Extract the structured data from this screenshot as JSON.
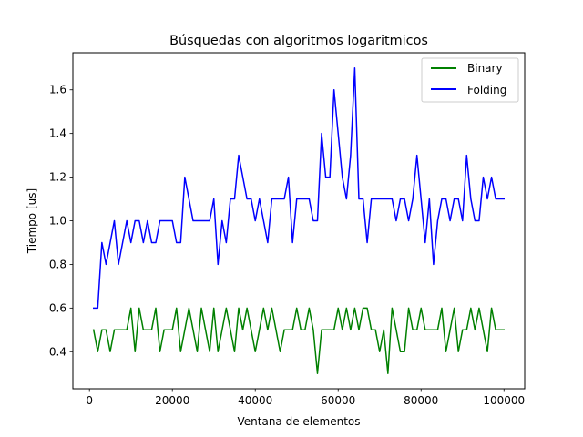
{
  "chart_data": {
    "type": "line",
    "title": "Búsquedas con algoritmos logaritmicos",
    "xlabel": "Ventana de elementos",
    "ylabel": "Tiempo [us]",
    "xlim": [
      -4000,
      105000
    ],
    "ylim": [
      0.23,
      1.77
    ],
    "xticks": [
      0,
      20000,
      40000,
      60000,
      80000,
      100000
    ],
    "yticks": [
      0.4,
      0.6,
      0.8,
      1.0,
      1.2,
      1.4,
      1.6
    ],
    "ytick_labels": [
      "0.4",
      "0.6",
      "0.8",
      "1.0",
      "1.2",
      "1.4",
      "1.6"
    ],
    "grid": false,
    "legend_position": "upper right",
    "x": [
      1000,
      2000,
      3000,
      4000,
      5000,
      6000,
      7000,
      8000,
      9000,
      10000,
      11000,
      12000,
      13000,
      14000,
      15000,
      16000,
      17000,
      18000,
      19000,
      20000,
      21000,
      22000,
      23000,
      24000,
      25000,
      26000,
      27000,
      28000,
      29000,
      30000,
      31000,
      32000,
      33000,
      34000,
      35000,
      36000,
      37000,
      38000,
      39000,
      40000,
      41000,
      42000,
      43000,
      44000,
      45000,
      46000,
      47000,
      48000,
      49000,
      50000,
      51000,
      52000,
      53000,
      54000,
      55000,
      56000,
      57000,
      58000,
      59000,
      60000,
      61000,
      62000,
      63000,
      64000,
      65000,
      66000,
      67000,
      68000,
      69000,
      70000,
      71000,
      72000,
      73000,
      74000,
      75000,
      76000,
      77000,
      78000,
      79000,
      80000,
      81000,
      82000,
      83000,
      84000,
      85000,
      86000,
      87000,
      88000,
      89000,
      90000,
      91000,
      92000,
      93000,
      94000,
      95000,
      96000,
      97000,
      98000,
      99000,
      100000
    ],
    "series": [
      {
        "name": "Binary",
        "color": "#008000",
        "values": [
          0.5,
          0.4,
          0.5,
          0.5,
          0.4,
          0.5,
          0.5,
          0.5,
          0.5,
          0.6,
          0.4,
          0.6,
          0.5,
          0.5,
          0.5,
          0.6,
          0.4,
          0.5,
          0.5,
          0.5,
          0.6,
          0.4,
          0.5,
          0.6,
          0.5,
          0.4,
          0.6,
          0.5,
          0.4,
          0.6,
          0.4,
          0.5,
          0.6,
          0.5,
          0.4,
          0.6,
          0.5,
          0.6,
          0.5,
          0.4,
          0.5,
          0.6,
          0.5,
          0.6,
          0.5,
          0.4,
          0.5,
          0.5,
          0.5,
          0.6,
          0.5,
          0.5,
          0.6,
          0.5,
          0.3,
          0.5,
          0.5,
          0.5,
          0.5,
          0.6,
          0.5,
          0.6,
          0.5,
          0.6,
          0.5,
          0.6,
          0.6,
          0.5,
          0.5,
          0.4,
          0.5,
          0.3,
          0.6,
          0.5,
          0.4,
          0.4,
          0.6,
          0.5,
          0.5,
          0.6,
          0.5,
          0.5,
          0.5,
          0.5,
          0.6,
          0.4,
          0.5,
          0.6,
          0.4,
          0.5,
          0.5,
          0.6,
          0.5,
          0.6,
          0.5,
          0.4,
          0.6,
          0.5,
          0.5,
          0.5
        ]
      },
      {
        "name": "Folding",
        "color": "#0000ff",
        "values": [
          0.6,
          0.6,
          0.9,
          0.8,
          0.9,
          1.0,
          0.8,
          0.9,
          1.0,
          0.9,
          1.0,
          1.0,
          0.9,
          1.0,
          0.9,
          0.9,
          1.0,
          1.0,
          1.0,
          1.0,
          0.9,
          0.9,
          1.2,
          1.1,
          1.0,
          1.0,
          1.0,
          1.0,
          1.0,
          1.1,
          0.8,
          1.0,
          0.9,
          1.1,
          1.1,
          1.3,
          1.2,
          1.1,
          1.1,
          1.0,
          1.1,
          1.0,
          0.9,
          1.1,
          1.1,
          1.1,
          1.1,
          1.2,
          0.9,
          1.1,
          1.1,
          1.1,
          1.1,
          1.0,
          1.0,
          1.4,
          1.2,
          1.2,
          1.6,
          1.4,
          1.2,
          1.1,
          1.3,
          1.7,
          1.1,
          1.1,
          0.9,
          1.1,
          1.1,
          1.1,
          1.1,
          1.1,
          1.1,
          1.0,
          1.1,
          1.1,
          1.0,
          1.1,
          1.3,
          1.1,
          0.9,
          1.1,
          0.8,
          1.0,
          1.1,
          1.1,
          1.0,
          1.1,
          1.1,
          1.0,
          1.3,
          1.1,
          1.0,
          1.0,
          1.2,
          1.1,
          1.2,
          1.1,
          1.1,
          1.1
        ]
      }
    ]
  }
}
